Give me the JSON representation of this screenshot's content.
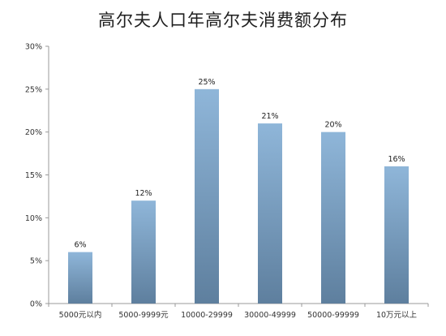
{
  "chart_data": {
    "type": "bar",
    "title": "高尔夫人口年高尔夫消费额分布",
    "xlabel": "",
    "ylabel": "",
    "categories": [
      "5000元以内",
      "5000-9999元",
      "10000-29999",
      "30000-49999",
      "50000-99999",
      "10万元以上"
    ],
    "values": [
      6,
      12,
      25,
      21,
      20,
      16
    ],
    "data_labels": [
      "6%",
      "12%",
      "25%",
      "21%",
      "20%",
      "16%"
    ],
    "ylim": [
      0,
      30
    ],
    "yticks": [
      0,
      5,
      10,
      15,
      20,
      25,
      30
    ],
    "ytick_labels": [
      "0%",
      "5%",
      "10%",
      "15%",
      "20%",
      "25%",
      "30%"
    ],
    "grid": false,
    "legend": "none",
    "colors": {
      "bar_top": "#8fb6d9",
      "bar_bottom": "#5e7f9e",
      "axis": "#9a9a9a"
    }
  }
}
